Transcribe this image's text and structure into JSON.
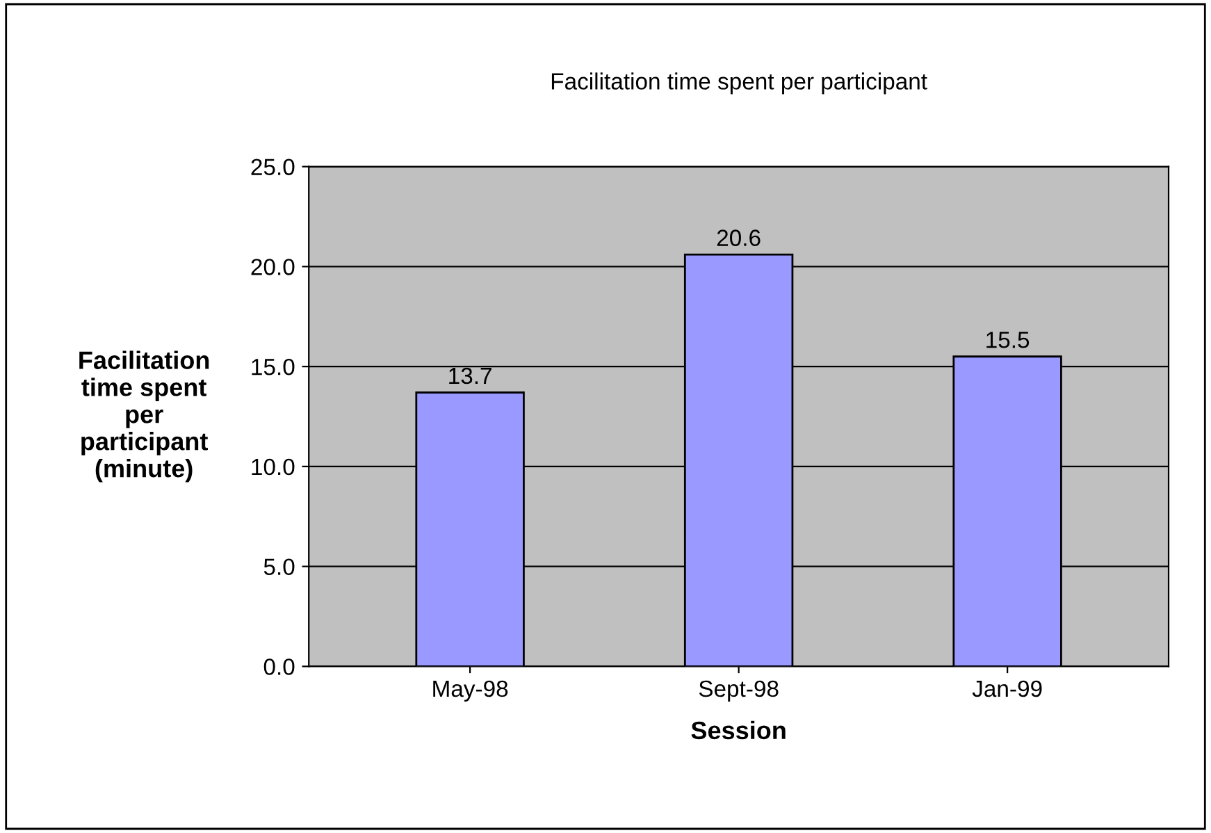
{
  "chart_data": {
    "type": "bar",
    "title": "Facilitation time spent per participant",
    "xlabel": "Session",
    "ylabel": "Facilitation\ntime spent\nper\nparticipant\n(minute)",
    "categories": [
      "May-98",
      "Sept-98",
      "Jan-99"
    ],
    "values": [
      13.7,
      20.6,
      15.5
    ],
    "color": "#9999ff",
    "ylim": [
      0,
      25
    ],
    "yticks": [
      {
        "value": 0,
        "label": "0.0"
      },
      {
        "value": 5,
        "label": "5.0"
      },
      {
        "value": 10,
        "label": "10.0"
      },
      {
        "value": 15,
        "label": "15.0"
      },
      {
        "value": 20,
        "label": "20.0"
      },
      {
        "value": 25,
        "label": "25.0"
      }
    ],
    "grid": "y",
    "data_labels": true
  }
}
